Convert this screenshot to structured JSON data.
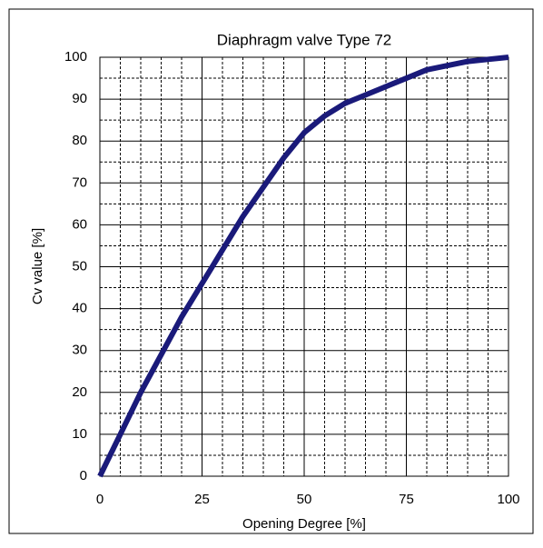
{
  "chart_data": {
    "type": "line",
    "title": "Diaphragm  valve Type 72",
    "xlabel": "Opening Degree [%]",
    "ylabel": "Cv value [%]",
    "x": [
      0,
      5,
      10,
      15,
      20,
      25,
      30,
      35,
      40,
      45,
      50,
      55,
      60,
      65,
      70,
      75,
      80,
      85,
      90,
      95,
      100
    ],
    "series": [
      {
        "name": "Cv",
        "color": "#1a1a7a",
        "values": [
          0,
          10,
          20,
          29,
          38,
          46,
          54,
          62,
          69,
          76,
          82,
          86,
          89,
          91,
          93,
          95,
          97,
          98,
          99,
          99.5,
          100
        ]
      }
    ],
    "xlim": [
      0,
      100
    ],
    "xticks": [
      0,
      25,
      50,
      75,
      100
    ],
    "ylim": [
      0,
      100
    ],
    "yticks": [
      0,
      10,
      20,
      30,
      40,
      50,
      60,
      70,
      80,
      90,
      100
    ],
    "xminorticks": [
      5,
      10,
      15,
      20,
      30,
      35,
      40,
      45,
      55,
      60,
      65,
      70,
      80,
      85,
      90,
      95
    ],
    "yminorticks": [
      5,
      15,
      25,
      35,
      45,
      55,
      65,
      75,
      85,
      95
    ],
    "grid": true
  }
}
